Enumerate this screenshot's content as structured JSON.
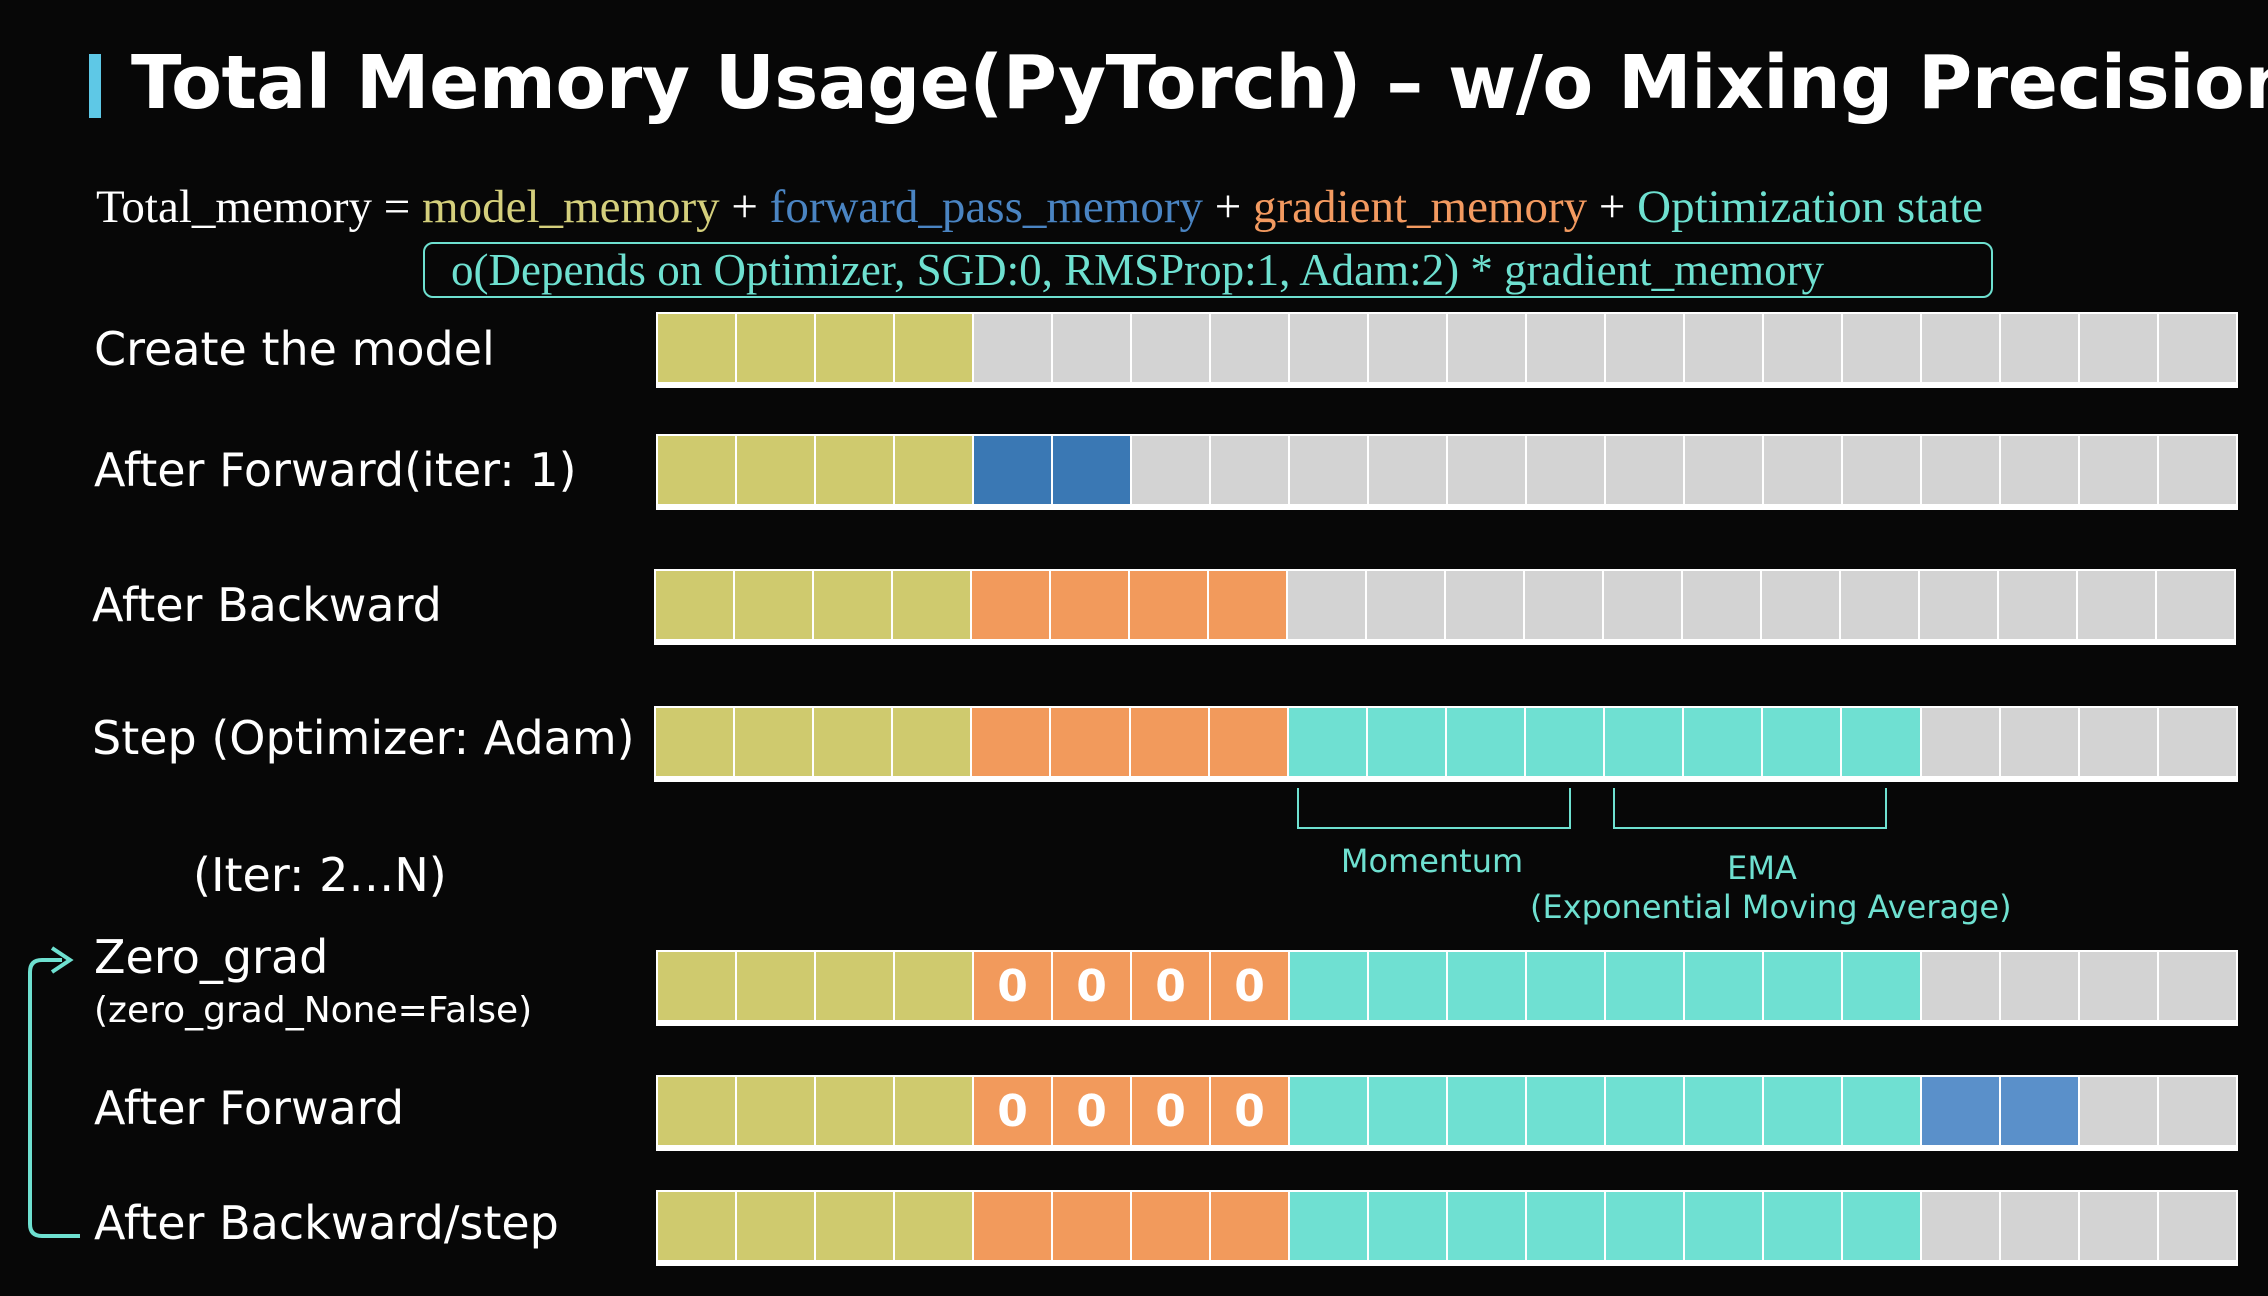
{
  "title": "Total Memory Usage(PyTorch) – w/o Mixing Precision",
  "formula": {
    "lhs": "Total_memory = ",
    "model": "model_memory",
    "plus1": " + ",
    "forward": "forward_pass_memory",
    "plus2": " + ",
    "gradient": "gradient_memory",
    "plus3": " +  ",
    "optimizer": "Optimization state",
    "note": "o(Depends on Optimizer, SGD:0, RMSProp:1, Adam:2) * gradient_memory"
  },
  "colors": {
    "model": "#cfca6e",
    "forward": "#3a78b4",
    "forward_light": "#5a90ca",
    "gradient": "#f29a5c",
    "optimizer": "#6fe0d2",
    "free": "#d3d3d3",
    "accent": "#5ec8e6"
  },
  "cell_count": 20,
  "rows": [
    {
      "label": "Create the model",
      "sub": "",
      "cells": [
        "model",
        "model",
        "model",
        "model",
        "free",
        "free",
        "free",
        "free",
        "free",
        "free",
        "free",
        "free",
        "free",
        "free",
        "free",
        "free",
        "free",
        "free",
        "free",
        "free"
      ],
      "values": []
    },
    {
      "label": "After Forward(iter: 1)",
      "sub": "",
      "cells": [
        "model",
        "model",
        "model",
        "model",
        "forward",
        "forward",
        "free",
        "free",
        "free",
        "free",
        "free",
        "free",
        "free",
        "free",
        "free",
        "free",
        "free",
        "free",
        "free",
        "free"
      ],
      "values": []
    },
    {
      "label": "After Backward",
      "sub": "",
      "cells": [
        "model",
        "model",
        "model",
        "model",
        "gradient",
        "gradient",
        "gradient",
        "gradient",
        "free",
        "free",
        "free",
        "free",
        "free",
        "free",
        "free",
        "free",
        "free",
        "free",
        "free",
        "free"
      ],
      "values": []
    },
    {
      "label": "Step (Optimizer: Adam)",
      "sub": "",
      "cells": [
        "model",
        "model",
        "model",
        "model",
        "gradient",
        "gradient",
        "gradient",
        "gradient",
        "optimizer",
        "optimizer",
        "optimizer",
        "optimizer",
        "optimizer",
        "optimizer",
        "optimizer",
        "optimizer",
        "free",
        "free",
        "free",
        "free"
      ],
      "values": []
    },
    {
      "label": "Zero_grad",
      "sub": "(zero_grad_None=False)",
      "cells": [
        "model",
        "model",
        "model",
        "model",
        "gradient",
        "gradient",
        "gradient",
        "gradient",
        "optimizer",
        "optimizer",
        "optimizer",
        "optimizer",
        "optimizer",
        "optimizer",
        "optimizer",
        "optimizer",
        "free",
        "free",
        "free",
        "free"
      ],
      "values": [
        "",
        "",
        "",
        "",
        "0",
        "0",
        "0",
        "0",
        "",
        "",
        "",
        "",
        "",
        "",
        "",
        "",
        "",
        "",
        "",
        ""
      ]
    },
    {
      "label": "After Forward",
      "sub": "",
      "cells": [
        "model",
        "model",
        "model",
        "model",
        "gradient",
        "gradient",
        "gradient",
        "gradient",
        "optimizer",
        "optimizer",
        "optimizer",
        "optimizer",
        "optimizer",
        "optimizer",
        "optimizer",
        "optimizer",
        "forward_light",
        "forward_light",
        "free",
        "free"
      ],
      "values": [
        "",
        "",
        "",
        "",
        "0",
        "0",
        "0",
        "0",
        "",
        "",
        "",
        "",
        "",
        "",
        "",
        "",
        "",
        "",
        "",
        ""
      ]
    },
    {
      "label": "After Backward/step",
      "sub": "",
      "cells": [
        "model",
        "model",
        "model",
        "model",
        "gradient",
        "gradient",
        "gradient",
        "gradient",
        "optimizer",
        "optimizer",
        "optimizer",
        "optimizer",
        "optimizer",
        "optimizer",
        "optimizer",
        "optimizer",
        "free",
        "free",
        "free",
        "free"
      ],
      "values": []
    }
  ],
  "iter_label": "(Iter: 2…N)",
  "annotations": {
    "momentum": "Momentum",
    "ema_title": "EMA",
    "ema_subtitle": "(Exponential Moving Average)"
  }
}
